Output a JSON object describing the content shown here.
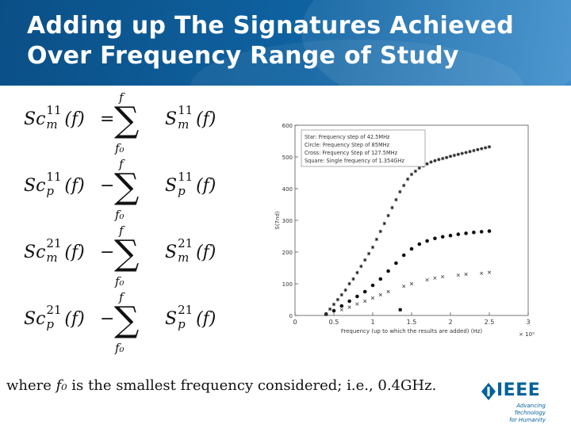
{
  "slide": {
    "title_lines": [
      "Adding up The Signatures Achieved",
      "Over Frequency Range of Study"
    ]
  },
  "equations": [
    {
      "lhs_base": "Sc",
      "sup": "11",
      "sub": "m",
      "arg": "(f)",
      "relation": "=",
      "sum_upper": "f",
      "sum_lower": "f₀",
      "rhs_base": "S",
      "rhs_sup": "11",
      "rhs_sub": "m",
      "rhs_arg": "(f)"
    },
    {
      "lhs_base": "Sc",
      "sup": "11",
      "sub": "p",
      "arg": "(f)",
      "relation": "−",
      "sum_upper": "f",
      "sum_lower": "f₀",
      "rhs_base": "S",
      "rhs_sup": "11",
      "rhs_sub": "p",
      "rhs_arg": "(f)"
    },
    {
      "lhs_base": "Sc",
      "sup": "21",
      "sub": "m",
      "arg": "(f)",
      "relation": "−",
      "sum_upper": "f",
      "sum_lower": "f₀",
      "rhs_base": "S",
      "rhs_sup": "21",
      "rhs_sub": "m",
      "rhs_arg": "(f)"
    },
    {
      "lhs_base": "Sc",
      "sup": "21",
      "sub": "p",
      "arg": "(f)",
      "relation": "−",
      "sum_upper": "f",
      "sum_lower": "f₀",
      "rhs_base": "S",
      "rhs_sup": "21",
      "rhs_sub": "p",
      "rhs_arg": "(f)"
    }
  ],
  "footnote": {
    "prefix": "where",
    "variable": "f₀",
    "suffix": "is the smallest frequency considered; i.e., 0.4GHz."
  },
  "branding": {
    "word": "IEEE",
    "tagline_1": "Advancing Technology",
    "tagline_2": "for Humanity",
    "icon": "ieee-diamond-icon",
    "color": "#00629b"
  },
  "colors": {
    "header_dark": "#0b4f86",
    "header_light": "#3f8fcc"
  },
  "chart_data": {
    "type": "scatter",
    "xlabel": "Frequency (up to which the results are added) (Hz)",
    "ylabel": "S(7nd)",
    "x_multiplier_label": "× 10⁹",
    "xlim": [
      0,
      3
    ],
    "ylim": [
      0,
      600
    ],
    "xticks": [
      0,
      0.5,
      1,
      1.5,
      2,
      2.5,
      3
    ],
    "yticks": [
      0,
      100,
      200,
      300,
      400,
      500,
      600
    ],
    "xtick_labels": [
      "0",
      "0.5",
      "1",
      "1.5",
      "2",
      "2.5",
      "3"
    ],
    "ytick_labels": [
      "0",
      "100",
      "200",
      "300",
      "400",
      "500",
      "600"
    ],
    "grid": false,
    "legend_position": "top-left",
    "series": [
      {
        "name": "Star: Frequency step of 42.5MHz",
        "marker": "star",
        "x": [
          0.4,
          0.45,
          0.5,
          0.55,
          0.6,
          0.65,
          0.7,
          0.75,
          0.8,
          0.85,
          0.9,
          0.95,
          1.0,
          1.05,
          1.1,
          1.15,
          1.2,
          1.25,
          1.3,
          1.35,
          1.4,
          1.45,
          1.5,
          1.55,
          1.6,
          1.65,
          1.7,
          1.75,
          1.8,
          1.85,
          1.9,
          1.95,
          2.0,
          2.05,
          2.1,
          2.15,
          2.2,
          2.25,
          2.3,
          2.35,
          2.4,
          2.45,
          2.5
        ],
        "y": [
          5,
          20,
          35,
          50,
          65,
          80,
          100,
          115,
          135,
          155,
          175,
          195,
          215,
          240,
          265,
          290,
          315,
          340,
          365,
          390,
          410,
          430,
          445,
          455,
          465,
          472,
          478,
          484,
          488,
          492,
          495,
          498,
          502,
          505,
          508,
          511,
          514,
          517,
          520,
          523,
          526,
          529,
          532
        ]
      },
      {
        "name": "Circle: Frequency Step of 85MHz",
        "marker": "dot",
        "x": [
          0.4,
          0.5,
          0.6,
          0.7,
          0.8,
          0.9,
          1.0,
          1.1,
          1.2,
          1.3,
          1.4,
          1.5,
          1.6,
          1.7,
          1.8,
          1.9,
          2.0,
          2.1,
          2.2,
          2.3,
          2.4,
          2.5
        ],
        "y": [
          4,
          15,
          30,
          45,
          60,
          75,
          95,
          115,
          140,
          165,
          190,
          210,
          225,
          235,
          243,
          248,
          252,
          256,
          259,
          262,
          264,
          266
        ]
      },
      {
        "name": "Cross: Frequency Step of 127.5MHz",
        "marker": "cross",
        "x": [
          0.4,
          0.6,
          0.7,
          0.8,
          0.9,
          1.0,
          1.1,
          1.2,
          1.4,
          1.5,
          1.7,
          1.8,
          1.9,
          2.1,
          2.2,
          2.4,
          2.5
        ],
        "y": [
          3,
          18,
          26,
          36,
          45,
          55,
          65,
          75,
          92,
          100,
          112,
          118,
          122,
          127,
          130,
          133,
          136
        ]
      },
      {
        "name": "Square: Single frequency of 1.354GHz",
        "marker": "square",
        "x": [
          1.354
        ],
        "y": [
          18
        ]
      }
    ]
  }
}
